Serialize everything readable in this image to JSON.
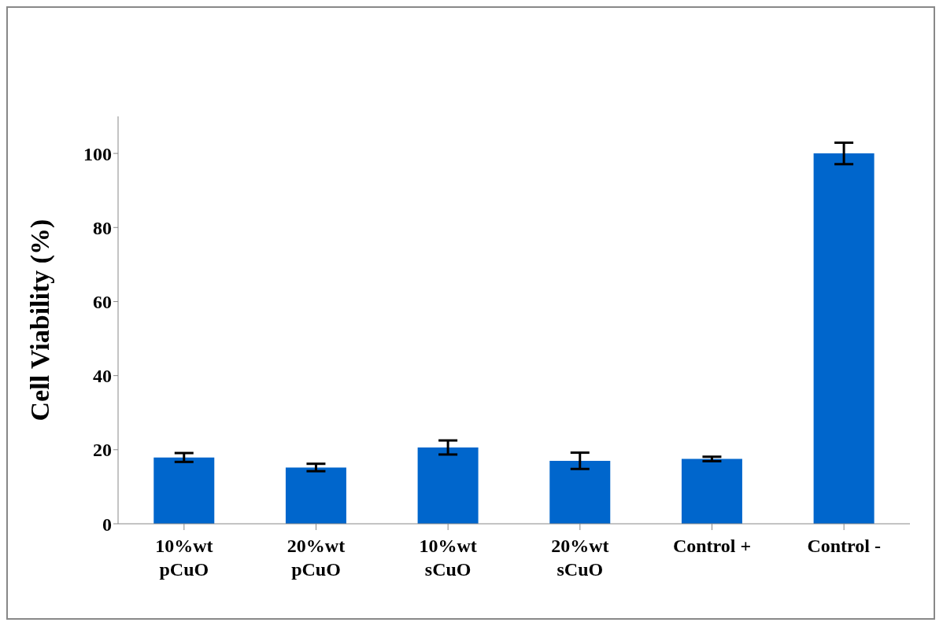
{
  "chart_data": {
    "type": "bar",
    "ylabel": "Cell Viability (%)",
    "categories": [
      "10%wt\npCuO",
      "20%wt\npCuO",
      "10%wt\nsCuO",
      "20%wt\nsCuO",
      "Control +",
      "Control -"
    ],
    "values": [
      17.9,
      15.2,
      20.6,
      17.0,
      17.5,
      100
    ],
    "errors": [
      1.2,
      1.0,
      1.9,
      2.2,
      0.6,
      2.9
    ],
    "color": "#0066cc",
    "ylim": [
      0,
      110
    ],
    "yticks": [
      0,
      20,
      40,
      60,
      80,
      100
    ],
    "grid": false,
    "legend": false
  }
}
